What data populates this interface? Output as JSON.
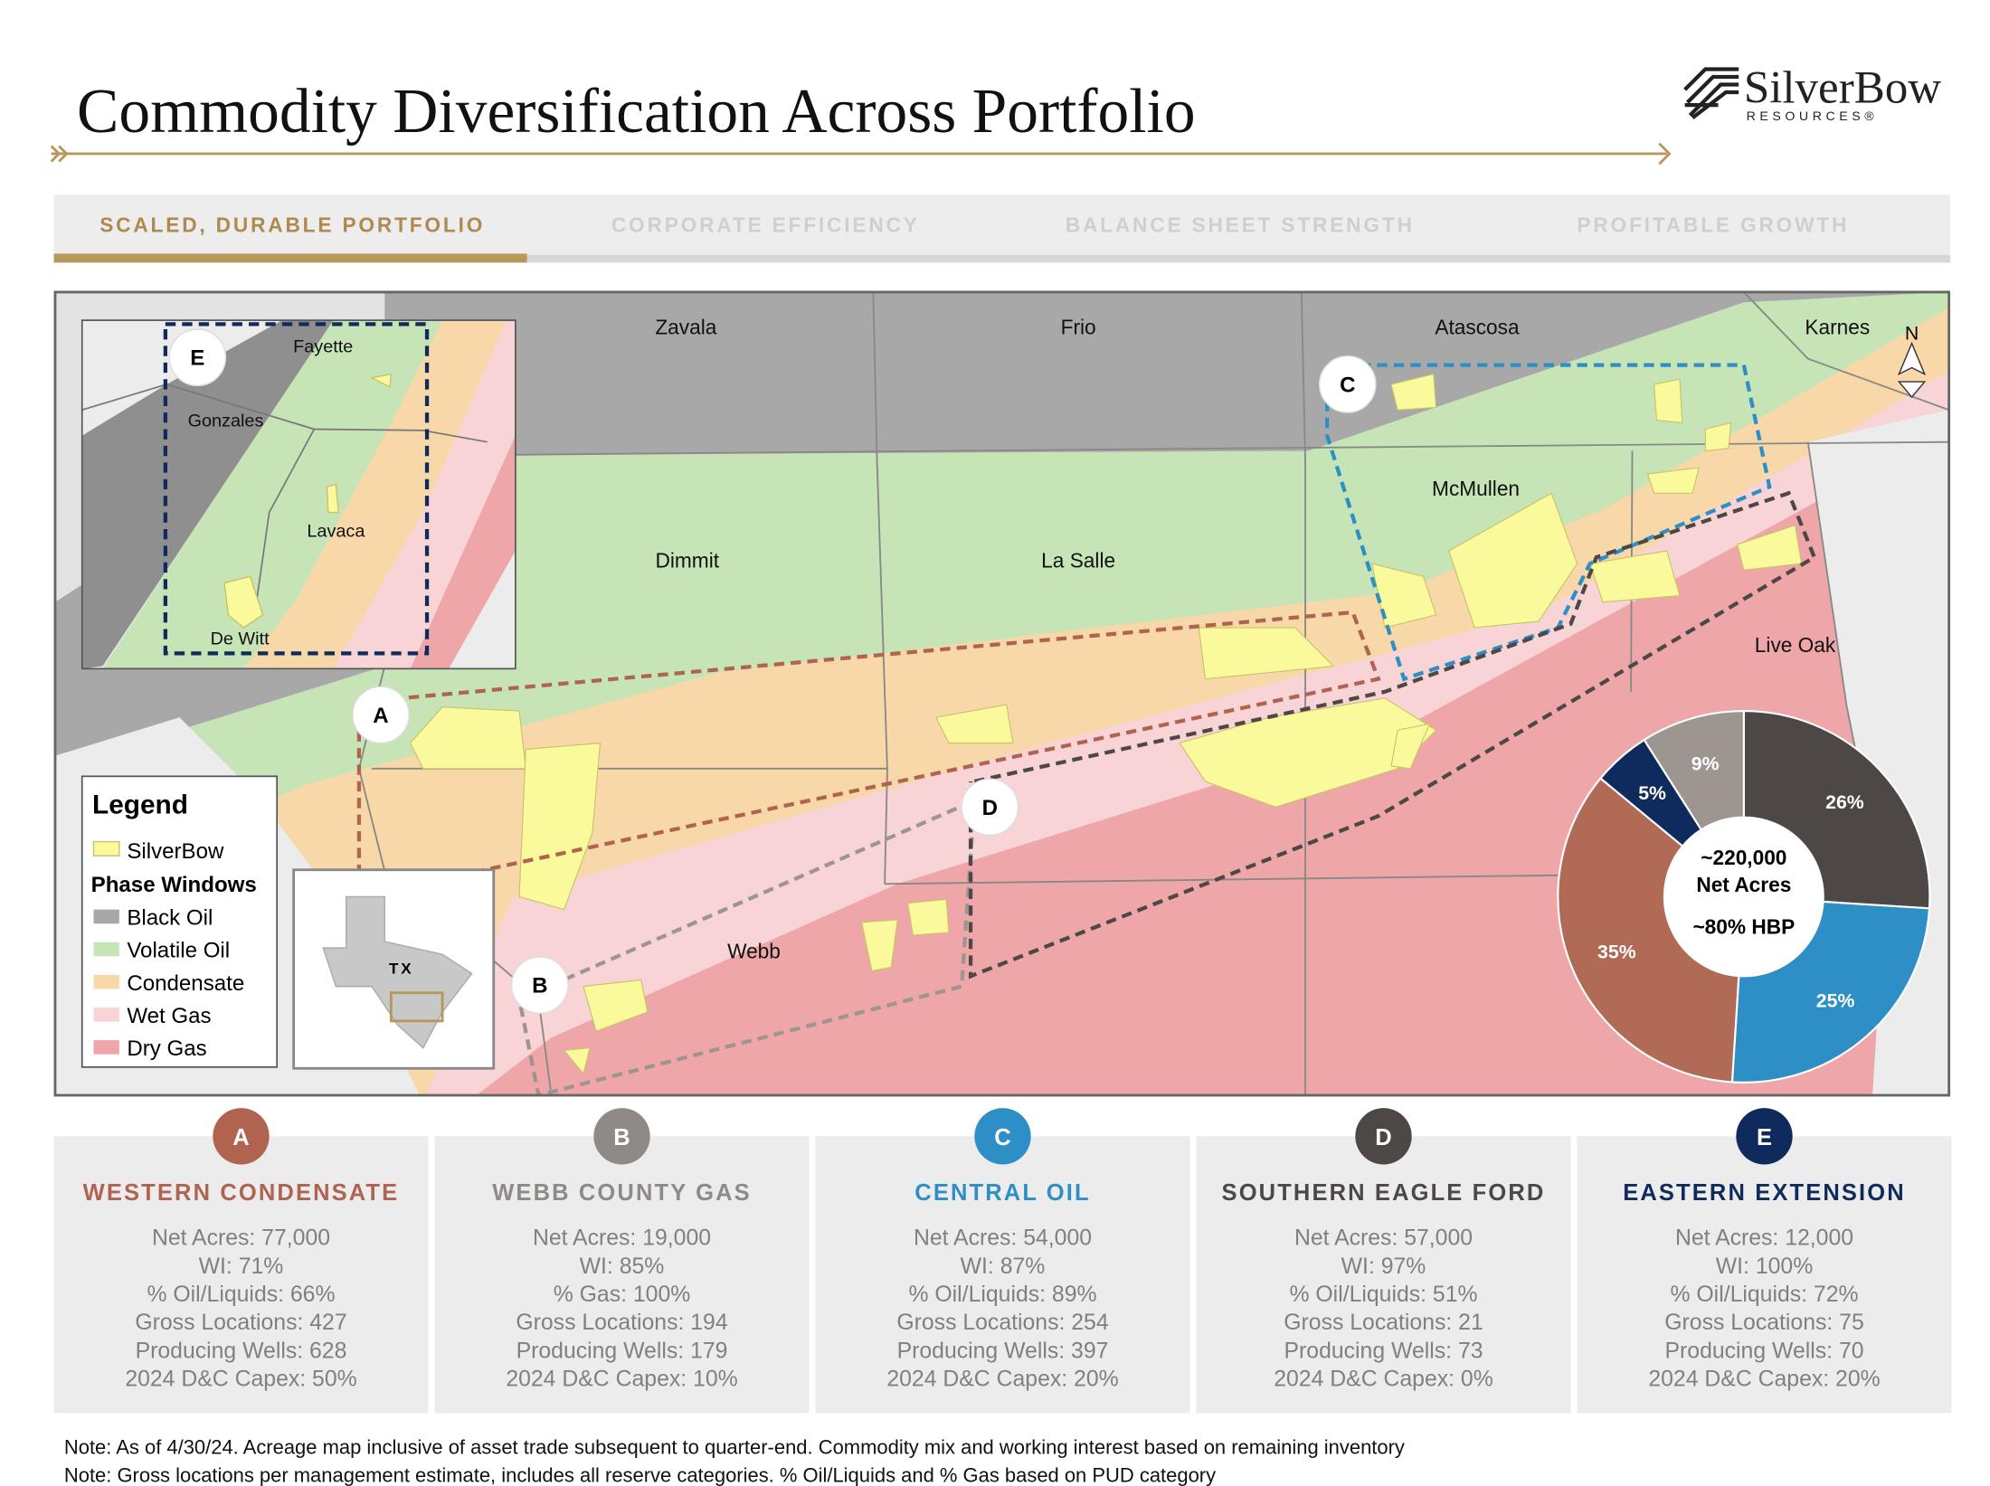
{
  "header": {
    "title": "Commodity Diversification Across Portfolio",
    "logo": "SilverBow",
    "logo_sub": "RESOURCES®"
  },
  "tabs": [
    "SCALED, DURABLE PORTFOLIO",
    "CORPORATE EFFICIENCY",
    "BALANCE SHEET STRENGTH",
    "PROFITABLE GROWTH"
  ],
  "map": {
    "counties": [
      "Zavala",
      "Frio",
      "Atascosa",
      "Karnes",
      "McMullen",
      "Dimmit",
      "La Salle",
      "Live Oak",
      "Webb"
    ],
    "inset_counties": [
      "Fayette",
      "Gonzales",
      "Lavaca",
      "De Witt"
    ],
    "markers": [
      "A",
      "B",
      "C",
      "D",
      "E"
    ],
    "state": "TX",
    "north": "N",
    "legend": {
      "title": "Legend",
      "acreage": "SilverBow",
      "phase_title": "Phase Windows",
      "phases": [
        {
          "name": "Black Oil",
          "color": "#a8a8a8"
        },
        {
          "name": "Volatile Oil",
          "color": "#c6e4b6"
        },
        {
          "name": "Condensate",
          "color": "#f8d7a9"
        },
        {
          "name": "Wet Gas",
          "color": "#f8d4d6"
        },
        {
          "name": "Dry Gas",
          "color": "#eea6a9"
        }
      ]
    }
  },
  "chart_data": {
    "type": "pie",
    "values": [
      26,
      25,
      35,
      5,
      9
    ],
    "value_labels": [
      "26%",
      "25%",
      "35%",
      "5%",
      "9%"
    ],
    "colors": [
      "#4d4845",
      "#2e8fc6",
      "#b06a55",
      "#0f2a5c",
      "#9c9590"
    ],
    "center_label": [
      "~220,000",
      "Net Acres",
      "~80% HBP"
    ]
  },
  "cards": [
    {
      "letter": "A",
      "title": "WESTERN CONDENSATE",
      "color": "#b0634f",
      "lines": [
        "Net Acres: 77,000",
        "WI: 71%",
        "% Oil/Liquids: 66%",
        "Gross Locations: 427",
        "Producing Wells: 628",
        "2024 D&C Capex: 50%"
      ]
    },
    {
      "letter": "B",
      "title": "WEBB COUNTY GAS",
      "color": "#8f8a86",
      "lines": [
        "Net Acres: 19,000",
        "WI: 85%",
        "% Gas: 100%",
        "Gross Locations: 194",
        "Producing Wells: 179",
        "2024 D&C Capex: 10%"
      ]
    },
    {
      "letter": "C",
      "title": "CENTRAL OIL",
      "color": "#2e8fc6",
      "lines": [
        "Net Acres: 54,000",
        "WI: 87%",
        "% Oil/Liquids: 89%",
        "Gross Locations: 254",
        "Producing Wells: 397",
        "2024 D&C Capex: 20%"
      ]
    },
    {
      "letter": "D",
      "title": "SOUTHERN EAGLE FORD",
      "color": "#4d4845",
      "lines": [
        "Net Acres: 57,000",
        "WI: 97%",
        "% Oil/Liquids: 51%",
        "Gross Locations: 21",
        "Producing Wells: 73",
        "2024 D&C Capex: 0%"
      ]
    },
    {
      "letter": "E",
      "title": "EASTERN EXTENSION",
      "color": "#0f2a5c",
      "lines": [
        "Net Acres: 12,000",
        "WI: 100%",
        "% Oil/Liquids: 72%",
        "Gross Locations: 75",
        "Producing Wells: 70",
        "2024 D&C Capex: 20%"
      ]
    }
  ],
  "notes": [
    "Note: As of 4/30/24. Acreage map inclusive of asset trade subsequent to quarter-end. Commodity mix and working interest based on remaining inventory",
    "Note: Gross locations per management estimate, includes all reserve categories. % Oil/Liquids and % Gas based on PUD category"
  ]
}
